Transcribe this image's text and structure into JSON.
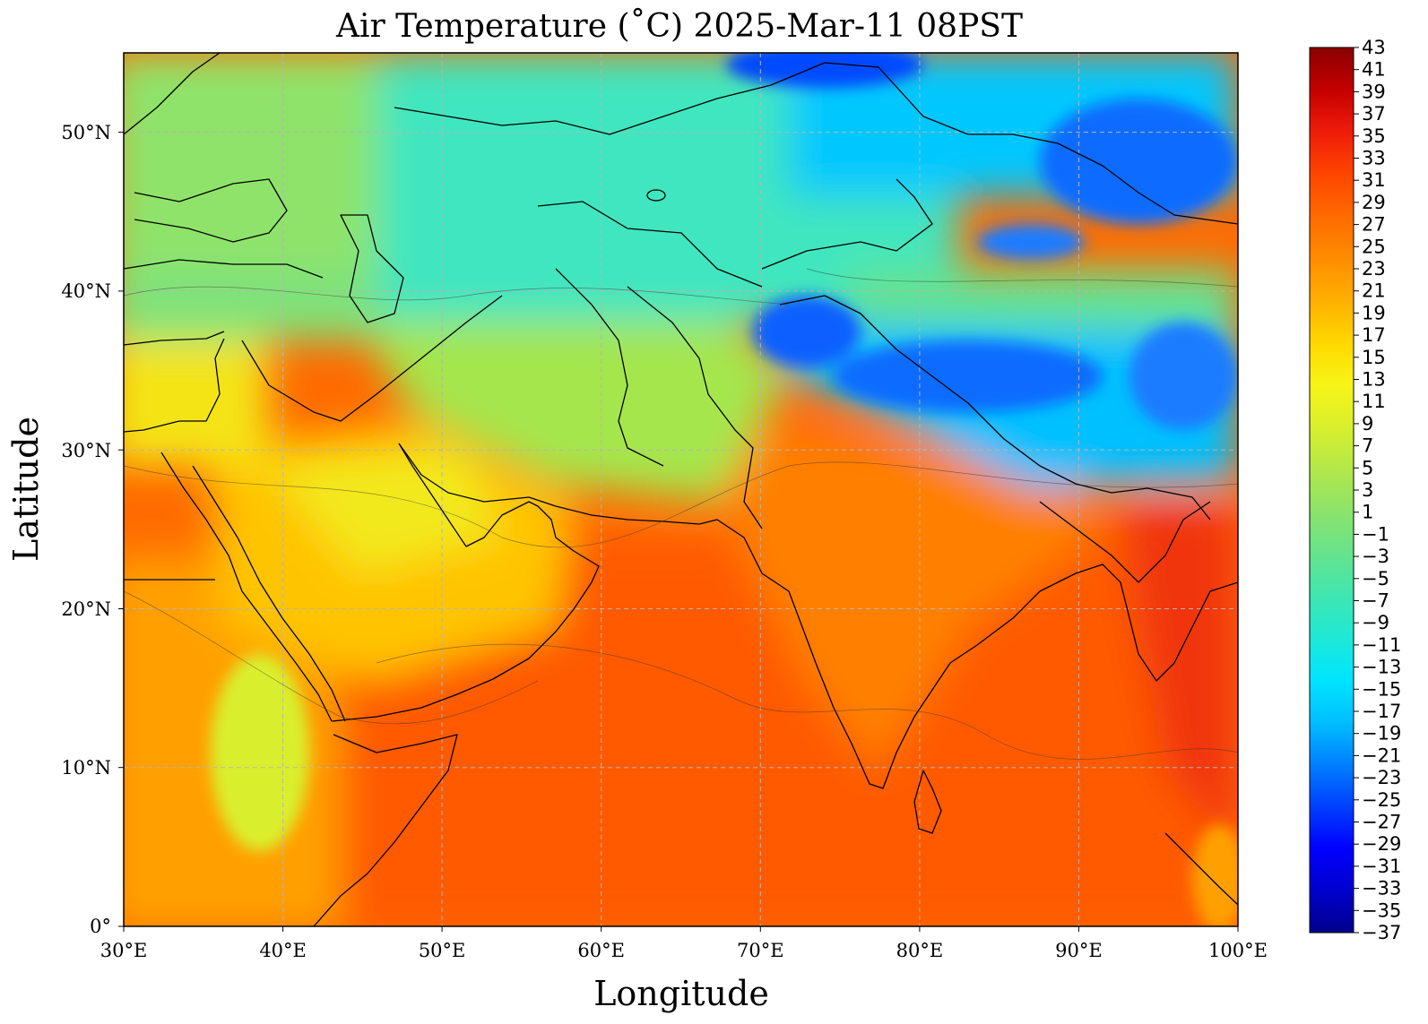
{
  "title": "Air Temperature (˚C)  2025-Mar-11 08PST",
  "xlabel": "Longitude",
  "ylabel": "Latitude",
  "x_ticks": [
    "30°E",
    "40°E",
    "50°E",
    "60°E",
    "70°E",
    "80°E",
    "90°E",
    "100°E"
  ],
  "y_ticks": [
    "0°",
    "10°N",
    "20°N",
    "30°N",
    "40°N",
    "50°N"
  ],
  "colorbar": {
    "labels": [
      "43",
      "41",
      "39",
      "37",
      "35",
      "33",
      "31",
      "29",
      "27",
      "25",
      "23",
      "21",
      "19",
      "17",
      "15",
      "13",
      "11",
      "9",
      "7",
      "5",
      "3",
      "1",
      "−1",
      "−3",
      "−5",
      "−7",
      "−9",
      "−11",
      "−13",
      "−15",
      "−17",
      "−19",
      "−21",
      "−23",
      "−25",
      "−27",
      "−29",
      "−31",
      "−33",
      "−35",
      "−37"
    ],
    "min": -37,
    "max": 43,
    "step": 2,
    "colors": [
      "#00008b",
      "#0000cd",
      "#0000ff",
      "#0040ff",
      "#0080ff",
      "#00bfff",
      "#00e5ff",
      "#1fe8d6",
      "#40e6b0",
      "#66e38c",
      "#8ce36a",
      "#b3e84a",
      "#d9ef2d",
      "#f7f516",
      "#ffd700",
      "#ffb000",
      "#ff8c00",
      "#ff6a00",
      "#ff4500",
      "#ee1c0a",
      "#c40000",
      "#8b0000"
    ]
  },
  "map": {
    "lon_range": [
      30,
      100
    ],
    "lat_range": [
      0,
      55
    ],
    "variable": "Air Temperature",
    "unit": "˚C",
    "palette": "jet",
    "grid": true
  }
}
